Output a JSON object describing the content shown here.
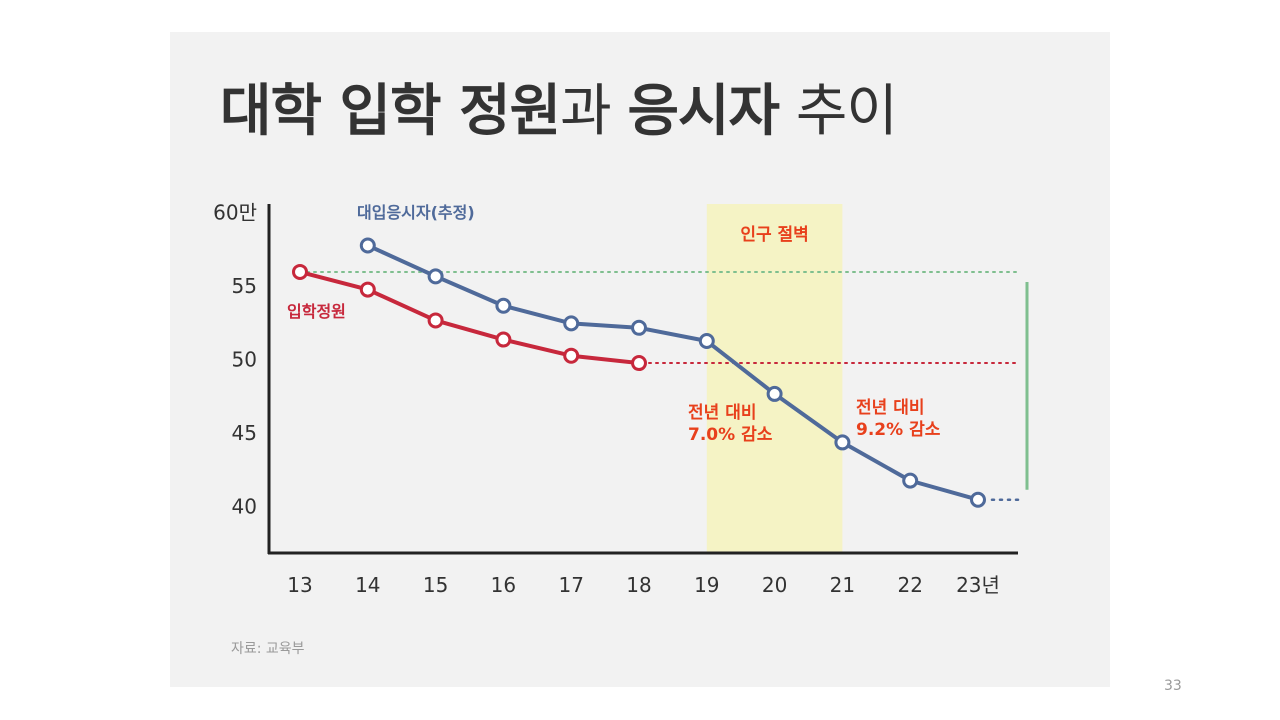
{
  "slide": {
    "title_parts": [
      "대학 입학 정원",
      "과 ",
      "응시자",
      " 추이"
    ],
    "source": "자료: 교육부",
    "page_number": "33"
  },
  "colors": {
    "applicants": "#4f6a9a",
    "quota": "#c7283c",
    "annotation": "#e8401c",
    "band": "#f5f3c5",
    "guide_green": "#7fbf8f",
    "axis": "#222222"
  },
  "chart_data": {
    "type": "line",
    "x": [
      "13",
      "14",
      "15",
      "16",
      "17",
      "18",
      "19",
      "20",
      "21",
      "22",
      "23년"
    ],
    "y_ticks": [
      "40",
      "45",
      "50",
      "55",
      "60만"
    ],
    "ylim": [
      38,
      61
    ],
    "series": [
      {
        "name": "대입응시자(추정)",
        "key": "applicants",
        "values": [
          null,
          57.7,
          55.6,
          53.6,
          52.4,
          52.1,
          51.2,
          47.6,
          44.3,
          41.7,
          40.4
        ]
      },
      {
        "name": "입학정원",
        "key": "quota",
        "values": [
          55.9,
          54.7,
          52.6,
          51.3,
          50.2,
          49.7,
          null,
          null,
          null,
          null,
          null
        ]
      }
    ],
    "band": {
      "label": "인구 절벽",
      "from": "19",
      "to": "21"
    },
    "annotations": [
      {
        "lines": [
          "전년 대비",
          "7.0% 감소"
        ]
      },
      {
        "lines": [
          "전년 대비",
          "9.2% 감소"
        ]
      }
    ]
  }
}
